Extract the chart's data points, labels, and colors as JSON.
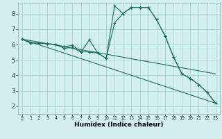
{
  "title": "",
  "xlabel": "Humidex (Indice chaleur)",
  "ylabel": "",
  "bg_color": "#d4f0ee",
  "line_color": "#1e6e60",
  "grid_color": "#aed8d0",
  "xlim": [
    -0.5,
    23.5
  ],
  "ylim": [
    1.5,
    8.7
  ],
  "xticks": [
    0,
    1,
    2,
    3,
    4,
    5,
    6,
    7,
    8,
    9,
    10,
    11,
    12,
    13,
    14,
    15,
    16,
    17,
    18,
    19,
    20,
    21,
    22,
    23
  ],
  "yticks": [
    2,
    3,
    4,
    5,
    6,
    7,
    8
  ],
  "series1": {
    "x": [
      0,
      1,
      2,
      3,
      4,
      5,
      6,
      7,
      8,
      9,
      10,
      11,
      12,
      13,
      14,
      15,
      16,
      17,
      18,
      19,
      20,
      21,
      22,
      23
    ],
    "y": [
      6.35,
      6.1,
      6.1,
      6.05,
      6.0,
      5.85,
      5.95,
      5.55,
      5.5,
      5.45,
      5.1,
      8.5,
      8.0,
      8.4,
      8.4,
      8.4,
      7.6,
      6.55,
      5.2,
      4.1,
      3.8,
      3.4,
      2.9,
      2.2
    ]
  },
  "series2": {
    "x": [
      0,
      1,
      2,
      3,
      4,
      5,
      6,
      7,
      8,
      9,
      10,
      11,
      12,
      13,
      14,
      15,
      16,
      17,
      18,
      19,
      20,
      21,
      22,
      23
    ],
    "y": [
      6.35,
      6.1,
      6.1,
      6.05,
      6.0,
      5.75,
      5.8,
      5.5,
      6.3,
      5.45,
      5.1,
      7.4,
      8.0,
      8.4,
      8.4,
      8.4,
      7.6,
      6.55,
      5.2,
      4.1,
      3.8,
      3.4,
      2.9,
      2.2
    ]
  },
  "series3_linear": {
    "x": [
      0,
      23
    ],
    "y": [
      6.35,
      4.1
    ]
  },
  "series4_linear": {
    "x": [
      0,
      23
    ],
    "y": [
      6.35,
      2.2
    ]
  },
  "xlabel_fontsize": 6.5,
  "xlabel_fontweight": "bold",
  "tick_fontsize_x": 4.8,
  "tick_fontsize_y": 6.0
}
